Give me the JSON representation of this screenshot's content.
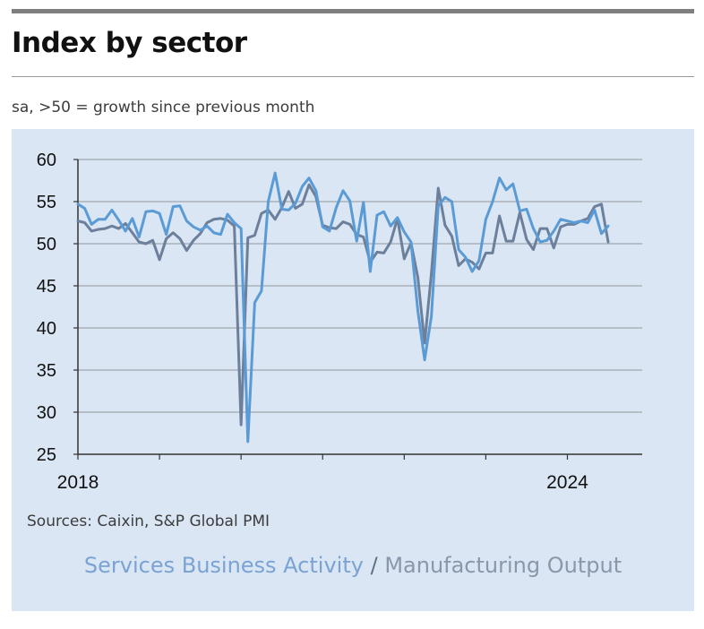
{
  "header": {
    "title": "Index by sector",
    "subtitle": "sa, >50 = growth since previous month"
  },
  "footer": {
    "sources": "Sources: Caixin, S&P Global PMI"
  },
  "legend": {
    "services": "Services Business Activity",
    "separator": "/",
    "manufacturing": "Manufacturing Output"
  },
  "colors": {
    "background_panel": "#dae6f4",
    "services": "#5b9bd5",
    "manufacturing": "#6c7f9b",
    "gridline": "#a9b0b9",
    "axis": "#333333"
  },
  "chart_data": {
    "type": "line",
    "title": "Index by sector",
    "subtitle": "sa, >50 = growth since previous month",
    "xlabel": "",
    "ylabel": "",
    "ylim": [
      25,
      60
    ],
    "yticks": [
      25,
      30,
      35,
      40,
      45,
      50,
      55,
      60
    ],
    "xlim": [
      2018,
      2024.917
    ],
    "xticks": [
      {
        "value": 2018,
        "label": "2018"
      },
      {
        "value": 2024,
        "label": "2024"
      }
    ],
    "grid": true,
    "legend_position": "bottom",
    "series": [
      {
        "name": "Services Business Activity",
        "color": "#5b9bd5",
        "values": [
          [
            2018.0,
            54.7
          ],
          [
            2018.083,
            54.2
          ],
          [
            2018.167,
            52.3
          ],
          [
            2018.25,
            52.9
          ],
          [
            2018.333,
            52.9
          ],
          [
            2018.417,
            54.0
          ],
          [
            2018.5,
            52.8
          ],
          [
            2018.583,
            51.5
          ],
          [
            2018.667,
            53.0
          ],
          [
            2018.75,
            50.8
          ],
          [
            2018.833,
            53.8
          ],
          [
            2018.917,
            53.9
          ],
          [
            2019.0,
            53.6
          ],
          [
            2019.083,
            51.1
          ],
          [
            2019.167,
            54.4
          ],
          [
            2019.25,
            54.5
          ],
          [
            2019.333,
            52.7
          ],
          [
            2019.417,
            52.0
          ],
          [
            2019.5,
            51.6
          ],
          [
            2019.583,
            52.1
          ],
          [
            2019.667,
            51.3
          ],
          [
            2019.75,
            51.1
          ],
          [
            2019.833,
            53.5
          ],
          [
            2019.917,
            52.5
          ],
          [
            2020.0,
            51.8
          ],
          [
            2020.083,
            26.5
          ],
          [
            2020.167,
            43.0
          ],
          [
            2020.25,
            44.4
          ],
          [
            2020.333,
            55.0
          ],
          [
            2020.417,
            58.4
          ],
          [
            2020.5,
            54.1
          ],
          [
            2020.583,
            54.0
          ],
          [
            2020.667,
            54.8
          ],
          [
            2020.75,
            56.8
          ],
          [
            2020.833,
            57.8
          ],
          [
            2020.917,
            56.3
          ],
          [
            2021.0,
            52.0
          ],
          [
            2021.083,
            51.5
          ],
          [
            2021.167,
            54.3
          ],
          [
            2021.25,
            56.3
          ],
          [
            2021.333,
            55.1
          ],
          [
            2021.417,
            50.3
          ],
          [
            2021.5,
            54.9
          ],
          [
            2021.583,
            46.7
          ],
          [
            2021.667,
            53.4
          ],
          [
            2021.75,
            53.8
          ],
          [
            2021.833,
            52.1
          ],
          [
            2021.917,
            53.1
          ],
          [
            2022.0,
            51.4
          ],
          [
            2022.083,
            50.2
          ],
          [
            2022.167,
            42.0
          ],
          [
            2022.25,
            36.2
          ],
          [
            2022.333,
            41.4
          ],
          [
            2022.417,
            54.5
          ],
          [
            2022.5,
            55.5
          ],
          [
            2022.583,
            55.0
          ],
          [
            2022.667,
            49.3
          ],
          [
            2022.75,
            48.4
          ],
          [
            2022.833,
            46.7
          ],
          [
            2022.917,
            48.0
          ],
          [
            2023.0,
            52.9
          ],
          [
            2023.083,
            55.0
          ],
          [
            2023.167,
            57.8
          ],
          [
            2023.25,
            56.4
          ],
          [
            2023.333,
            57.1
          ],
          [
            2023.417,
            53.9
          ],
          [
            2023.5,
            54.1
          ],
          [
            2023.583,
            51.8
          ],
          [
            2023.667,
            50.2
          ],
          [
            2023.75,
            50.4
          ],
          [
            2023.833,
            51.5
          ],
          [
            2023.917,
            52.9
          ],
          [
            2024.0,
            52.7
          ],
          [
            2024.083,
            52.5
          ],
          [
            2024.167,
            52.7
          ],
          [
            2024.25,
            52.5
          ],
          [
            2024.333,
            54.0
          ],
          [
            2024.417,
            51.2
          ],
          [
            2024.5,
            52.1
          ]
        ]
      },
      {
        "name": "Manufacturing Output",
        "color": "#6c7f9b",
        "values": [
          [
            2018.0,
            52.7
          ],
          [
            2018.083,
            52.5
          ],
          [
            2018.167,
            51.5
          ],
          [
            2018.25,
            51.7
          ],
          [
            2018.333,
            51.8
          ],
          [
            2018.417,
            52.1
          ],
          [
            2018.5,
            51.8
          ],
          [
            2018.583,
            52.4
          ],
          [
            2018.667,
            51.3
          ],
          [
            2018.75,
            50.2
          ],
          [
            2018.833,
            50.0
          ],
          [
            2018.917,
            50.4
          ],
          [
            2019.0,
            48.1
          ],
          [
            2019.083,
            50.6
          ],
          [
            2019.167,
            51.3
          ],
          [
            2019.25,
            50.6
          ],
          [
            2019.333,
            49.2
          ],
          [
            2019.417,
            50.4
          ],
          [
            2019.5,
            51.2
          ],
          [
            2019.583,
            52.5
          ],
          [
            2019.667,
            52.9
          ],
          [
            2019.75,
            53.0
          ],
          [
            2019.833,
            52.8
          ],
          [
            2019.917,
            52.1
          ],
          [
            2020.0,
            28.5
          ],
          [
            2020.083,
            50.7
          ],
          [
            2020.167,
            51.0
          ],
          [
            2020.25,
            53.6
          ],
          [
            2020.333,
            54.0
          ],
          [
            2020.417,
            52.9
          ],
          [
            2020.5,
            54.3
          ],
          [
            2020.583,
            56.2
          ],
          [
            2020.667,
            54.2
          ],
          [
            2020.75,
            54.7
          ],
          [
            2020.833,
            57.0
          ],
          [
            2020.917,
            55.6
          ],
          [
            2021.0,
            52.2
          ],
          [
            2021.083,
            51.9
          ],
          [
            2021.167,
            51.8
          ],
          [
            2021.25,
            52.6
          ],
          [
            2021.333,
            52.3
          ],
          [
            2021.417,
            51.1
          ],
          [
            2021.5,
            50.8
          ],
          [
            2021.583,
            47.8
          ],
          [
            2021.667,
            49.0
          ],
          [
            2021.75,
            48.9
          ],
          [
            2021.833,
            50.2
          ],
          [
            2021.917,
            53.0
          ],
          [
            2022.0,
            48.2
          ],
          [
            2022.083,
            50.1
          ],
          [
            2022.167,
            46.0
          ],
          [
            2022.25,
            38.2
          ],
          [
            2022.333,
            46.5
          ],
          [
            2022.417,
            56.6
          ],
          [
            2022.5,
            52.2
          ],
          [
            2022.583,
            50.9
          ],
          [
            2022.667,
            47.4
          ],
          [
            2022.75,
            48.2
          ],
          [
            2022.833,
            47.8
          ],
          [
            2022.917,
            47.0
          ],
          [
            2023.0,
            48.9
          ],
          [
            2023.083,
            48.9
          ],
          [
            2023.167,
            53.3
          ],
          [
            2023.25,
            50.3
          ],
          [
            2023.333,
            50.3
          ],
          [
            2023.417,
            53.7
          ],
          [
            2023.5,
            50.5
          ],
          [
            2023.583,
            49.3
          ],
          [
            2023.667,
            51.8
          ],
          [
            2023.75,
            51.8
          ],
          [
            2023.833,
            49.5
          ],
          [
            2023.917,
            52.0
          ],
          [
            2024.0,
            52.3
          ],
          [
            2024.083,
            52.3
          ],
          [
            2024.167,
            52.7
          ],
          [
            2024.25,
            53.0
          ],
          [
            2024.333,
            54.4
          ],
          [
            2024.417,
            54.7
          ],
          [
            2024.5,
            50.2
          ]
        ]
      }
    ]
  }
}
